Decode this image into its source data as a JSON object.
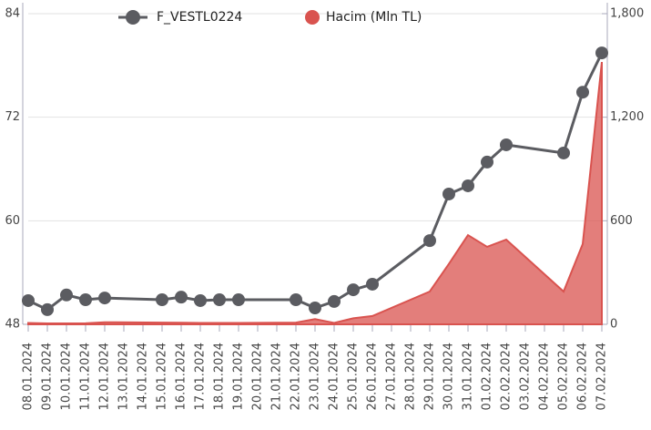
{
  "chart_data": {
    "type": "line",
    "x": [
      "08.01.2024",
      "09.01.2024",
      "10.01.2024",
      "11.01.2024",
      "12.01.2024",
      "15.01.2024",
      "16.01.2024",
      "17.01.2024",
      "18.01.2024",
      "19.01.2024",
      "22.01.2024",
      "23.01.2024",
      "24.01.2024",
      "25.01.2024",
      "26.01.2024",
      "29.01.2024",
      "30.01.2024",
      "31.01.2024",
      "01.02.2024",
      "02.02.2024",
      "05.02.2024",
      "06.02.2024",
      "07.02.2024"
    ],
    "xticks": [
      "08.01.2024",
      "09.01.2024",
      "10.01.2024",
      "11.01.2024",
      "12.01.2024",
      "13.01.2024",
      "14.01.2024",
      "15.01.2024",
      "16.01.2024",
      "17.01.2024",
      "18.01.2024",
      "19.01.2024",
      "20.01.2024",
      "21.01.2024",
      "22.01.2024",
      "23.01.2024",
      "24.01.2024",
      "25.01.2024",
      "26.01.2024",
      "27.01.2024",
      "28.01.2024",
      "29.01.2024",
      "30.01.2024",
      "31.01.2024",
      "01.02.2024",
      "02.02.2024",
      "03.02.2024",
      "04.02.2024",
      "05.02.2024",
      "06.02.2024",
      "07.02.2024"
    ],
    "series": [
      {
        "name": "F_VESTL0224",
        "color": "#5b5c61",
        "axis": "y",
        "values": [
          50.75,
          49.7,
          51.4,
          50.85,
          51.05,
          50.85,
          51.15,
          50.75,
          50.85,
          50.85,
          50.85,
          49.9,
          50.65,
          52.0,
          52.65,
          57.7,
          63.1,
          64.05,
          66.8,
          68.8,
          67.85,
          74.9,
          79.45
        ]
      },
      {
        "name": "Hacim (Mln TL)",
        "color": "#d9534f",
        "axis": "y2",
        "type": "area",
        "values": [
          8,
          5,
          5,
          6,
          12,
          10,
          9,
          8,
          8,
          8,
          10,
          30,
          8,
          35,
          48,
          190,
          350,
          517,
          449,
          491,
          190,
          465,
          1520
        ]
      }
    ],
    "ylim": [
      48,
      84
    ],
    "yticks": [
      48,
      60,
      72,
      84
    ],
    "y2lim": [
      0,
      1800
    ],
    "y2ticks": [
      0,
      600,
      {
        "value": 1200,
        "label": "1,200"
      },
      {
        "value": 1800,
        "label": "1,800"
      }
    ],
    "grid": true,
    "legend": "top"
  }
}
